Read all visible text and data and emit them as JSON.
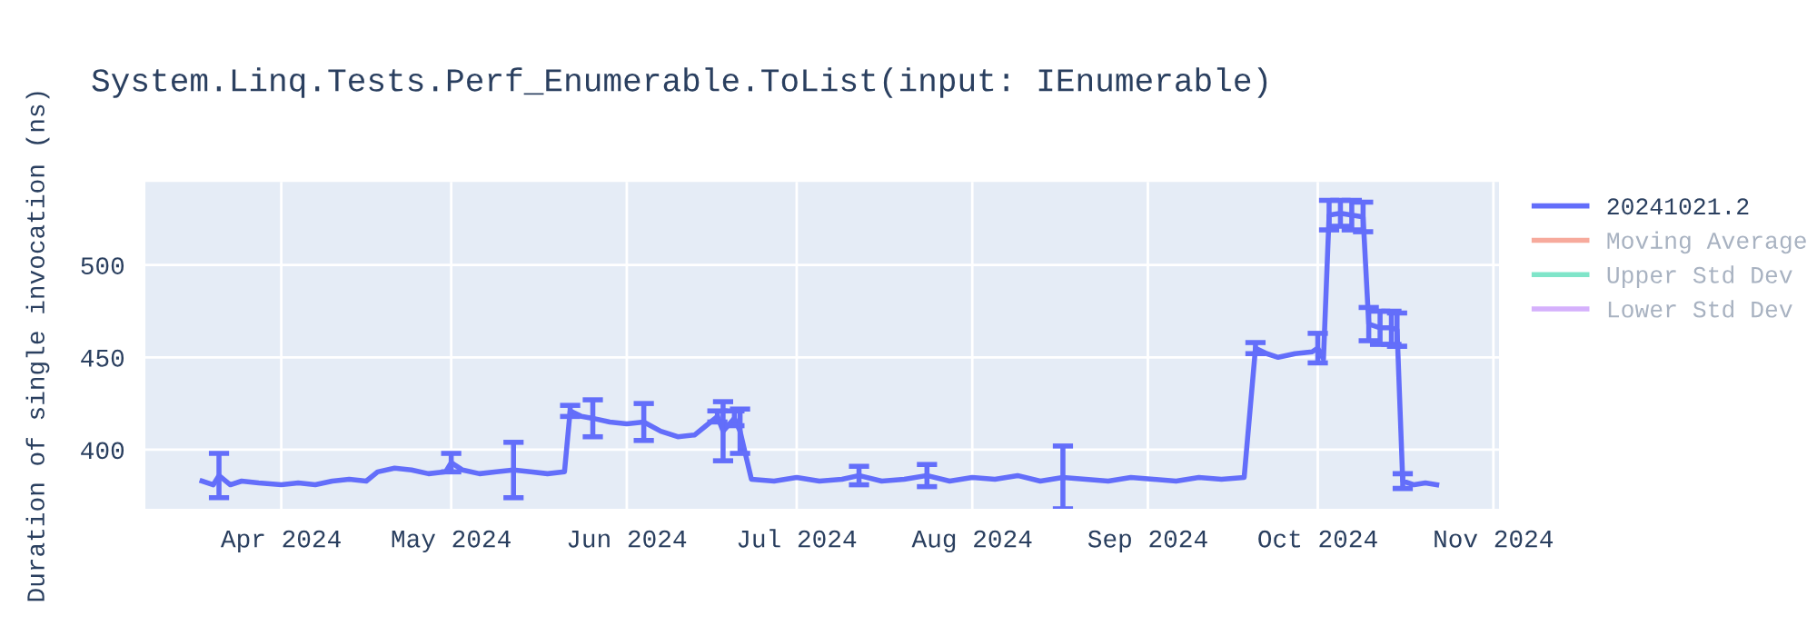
{
  "chart_data": {
    "type": "line",
    "title": "System.Linq.Tests.Perf_Enumerable.ToList(input: IEnumerable)",
    "ylabel": "Duration of single invocation (ns)",
    "xlim": [
      "2024-03-08",
      "2024-11-02"
    ],
    "ylim": [
      368,
      545
    ],
    "xticks": [
      {
        "value": "2024-04-01",
        "label": "Apr 2024"
      },
      {
        "value": "2024-05-01",
        "label": "May 2024"
      },
      {
        "value": "2024-06-01",
        "label": "Jun 2024"
      },
      {
        "value": "2024-07-01",
        "label": "Jul 2024"
      },
      {
        "value": "2024-08-01",
        "label": "Aug 2024"
      },
      {
        "value": "2024-09-01",
        "label": "Sep 2024"
      },
      {
        "value": "2024-10-01",
        "label": "Oct 2024"
      },
      {
        "value": "2024-11-01",
        "label": "Nov 2024"
      }
    ],
    "yticks": [
      400,
      450,
      500
    ],
    "grid": true,
    "legend": "right",
    "marker": "none",
    "line_style": "solid",
    "series": [
      {
        "name": "20241021.2",
        "color": "#636efa",
        "x": [
          "2024-03-18",
          "2024-03-20",
          "2024-03-21",
          "2024-03-23",
          "2024-03-25",
          "2024-03-28",
          "2024-04-01",
          "2024-04-04",
          "2024-04-07",
          "2024-04-10",
          "2024-04-13",
          "2024-04-16",
          "2024-04-18",
          "2024-04-21",
          "2024-04-24",
          "2024-04-27",
          "2024-04-30",
          "2024-05-01",
          "2024-05-03",
          "2024-05-06",
          "2024-05-09",
          "2024-05-12",
          "2024-05-15",
          "2024-05-18",
          "2024-05-21",
          "2024-05-22",
          "2024-05-24",
          "2024-05-26",
          "2024-05-29",
          "2024-06-01",
          "2024-06-04",
          "2024-06-07",
          "2024-06-10",
          "2024-06-13",
          "2024-06-15",
          "2024-06-17",
          "2024-06-18",
          "2024-06-20",
          "2024-06-21",
          "2024-06-23",
          "2024-06-27",
          "2024-07-01",
          "2024-07-05",
          "2024-07-09",
          "2024-07-12",
          "2024-07-16",
          "2024-07-20",
          "2024-07-24",
          "2024-07-28",
          "2024-08-01",
          "2024-08-05",
          "2024-08-09",
          "2024-08-13",
          "2024-08-17",
          "2024-08-21",
          "2024-08-25",
          "2024-08-29",
          "2024-09-02",
          "2024-09-06",
          "2024-09-10",
          "2024-09-14",
          "2024-09-18",
          "2024-09-20",
          "2024-09-22",
          "2024-09-24",
          "2024-09-27",
          "2024-09-30",
          "2024-10-01",
          "2024-10-02",
          "2024-10-03",
          "2024-10-05",
          "2024-10-07",
          "2024-10-09",
          "2024-10-10",
          "2024-10-12",
          "2024-10-14",
          "2024-10-15",
          "2024-10-16",
          "2024-10-18",
          "2024-10-20",
          "2024-10-22"
        ],
        "values": [
          383,
          381,
          386,
          381,
          383,
          382,
          381,
          382,
          381,
          383,
          384,
          383,
          388,
          390,
          389,
          387,
          388,
          393,
          389,
          387,
          388,
          389,
          388,
          387,
          388,
          421,
          418,
          417,
          415,
          414,
          415,
          410,
          407,
          408,
          413,
          418,
          410,
          417,
          410,
          384,
          383,
          385,
          383,
          384,
          386,
          383,
          384,
          386,
          383,
          385,
          384,
          386,
          383,
          385,
          384,
          383,
          385,
          384,
          383,
          385,
          384,
          385,
          455,
          452,
          450,
          452,
          453,
          455,
          449,
          527,
          528,
          527,
          526,
          468,
          466,
          466,
          465,
          383,
          381,
          382,
          381
        ],
        "errors": [
          null,
          null,
          12,
          null,
          null,
          null,
          null,
          null,
          null,
          null,
          null,
          null,
          null,
          null,
          null,
          null,
          null,
          5,
          null,
          null,
          null,
          15,
          null,
          null,
          null,
          3,
          null,
          10,
          null,
          null,
          10,
          null,
          null,
          null,
          null,
          3,
          16,
          4,
          12,
          null,
          null,
          null,
          null,
          null,
          5,
          null,
          null,
          6,
          null,
          null,
          null,
          null,
          null,
          17,
          null,
          null,
          null,
          null,
          null,
          null,
          null,
          null,
          3,
          null,
          null,
          null,
          null,
          8,
          null,
          8,
          7,
          8,
          8,
          9,
          9,
          9,
          9,
          4,
          null,
          null,
          null
        ]
      },
      {
        "name": "Moving Average",
        "color": "#f7aa9c"
      },
      {
        "name": "Upper Std Dev",
        "color": "#80e5c9"
      },
      {
        "name": "Lower Std Dev",
        "color": "#d5b0fc"
      }
    ]
  }
}
